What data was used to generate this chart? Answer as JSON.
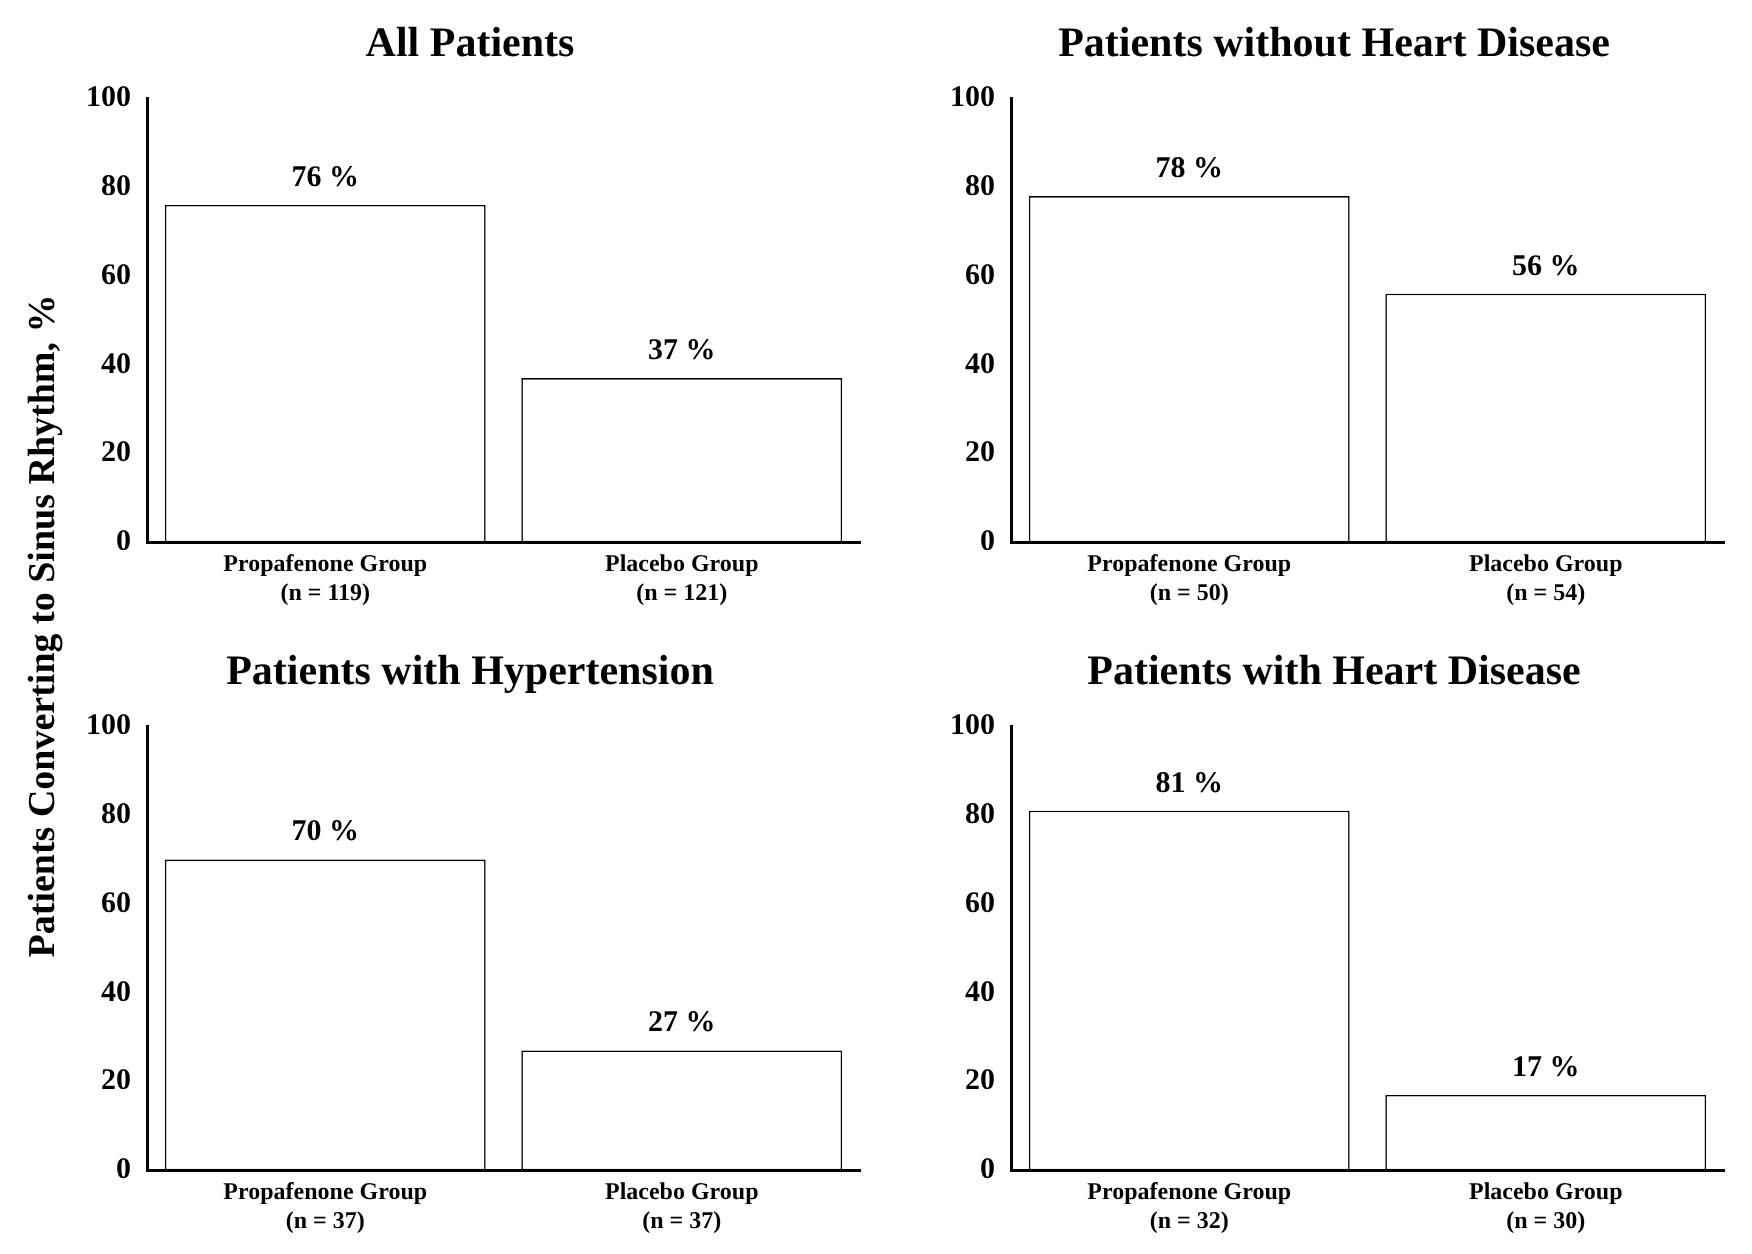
{
  "chart_data": [
    {
      "type": "bar",
      "title": "All Patients",
      "ylabel": "Patients Converting to Sinus Rhythm, %",
      "categories": [
        "Propafenone Group\n(n = 119)",
        "Placebo Group\n(n = 121)"
      ],
      "values": [
        76,
        37
      ],
      "value_labels": [
        "76 %",
        "37 %"
      ],
      "color": "#ffffff",
      "ylim": [
        0,
        100
      ],
      "yticks": [
        0,
        20,
        40,
        60,
        80,
        100
      ],
      "grid": false,
      "legend": false
    },
    {
      "type": "bar",
      "title": "Patients without Heart Disease",
      "categories": [
        "Propafenone Group\n(n = 50)",
        "Placebo Group\n(n = 54)"
      ],
      "values": [
        78,
        56
      ],
      "value_labels": [
        "78 %",
        "56 %"
      ],
      "color": "#ffffff",
      "ylim": [
        0,
        100
      ],
      "yticks": [
        0,
        20,
        40,
        60,
        80,
        100
      ],
      "grid": false,
      "legend": false
    },
    {
      "type": "bar",
      "title": "Patients with Hypertension",
      "categories": [
        "Propafenone Group\n(n = 37)",
        "Placebo Group\n(n = 37)"
      ],
      "values": [
        70,
        27
      ],
      "value_labels": [
        "70 %",
        "27 %"
      ],
      "color": "#ffffff",
      "ylim": [
        0,
        100
      ],
      "yticks": [
        0,
        20,
        40,
        60,
        80,
        100
      ],
      "grid": false,
      "legend": false
    },
    {
      "type": "bar",
      "title": "Patients with Heart Disease",
      "categories": [
        "Propafenone Group\n(n = 32)",
        "Placebo Group\n(n = 30)"
      ],
      "values": [
        81,
        17
      ],
      "value_labels": [
        "81 %",
        "17 %"
      ],
      "color": "#ffffff",
      "ylim": [
        0,
        100
      ],
      "yticks": [
        0,
        20,
        40,
        60,
        80,
        100
      ],
      "grid": false,
      "legend": false
    }
  ]
}
